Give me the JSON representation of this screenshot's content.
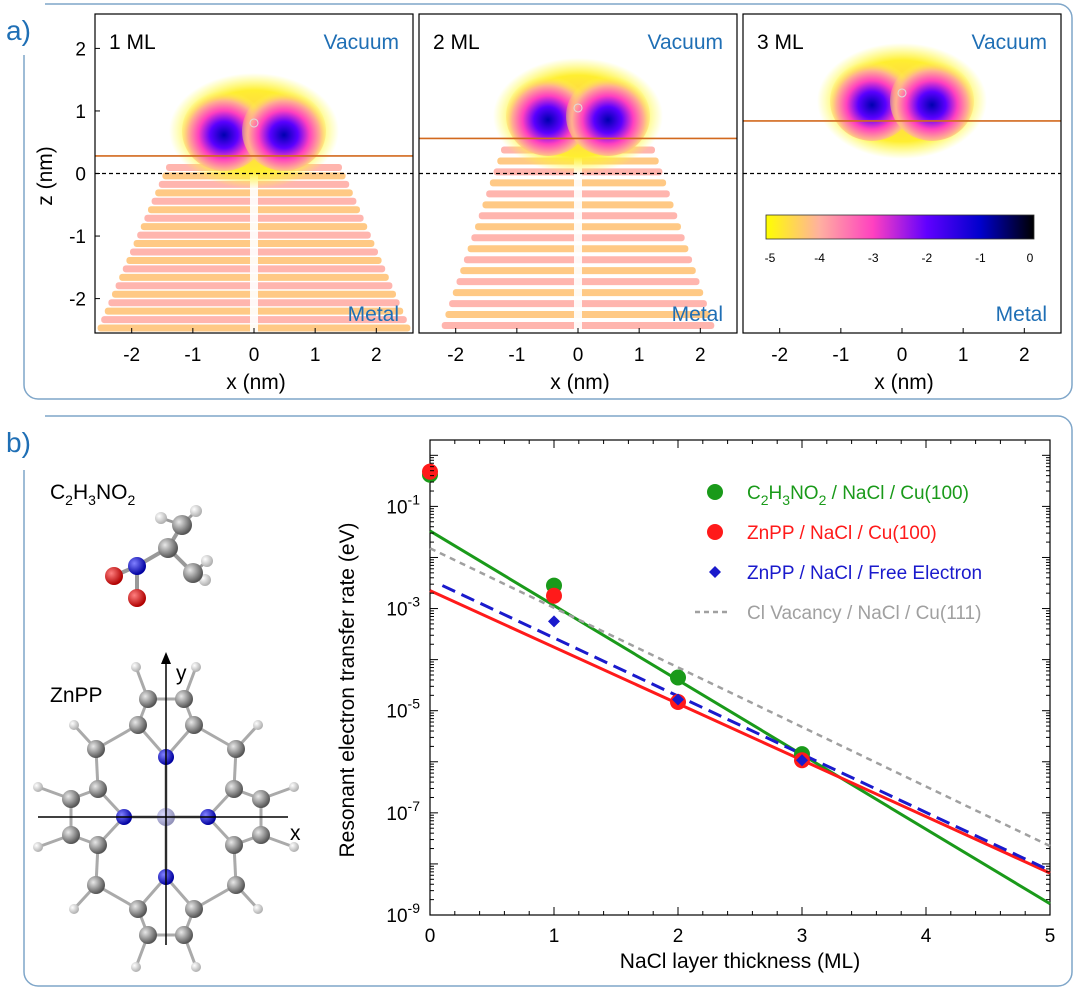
{
  "panel_a": {
    "letter": "a)",
    "panels": [
      {
        "label": "1 ML",
        "surface_z": 0.28,
        "blob_z": 0.68
      },
      {
        "label": "2 ML",
        "surface_z": 0.56,
        "blob_z": 0.92
      },
      {
        "label": "3 ML",
        "surface_z": 0.84,
        "blob_z": 1.16
      }
    ],
    "vacuum_label": "Vacuum",
    "metal_label": "Metal",
    "xlabel": "x (nm)",
    "ylabel": "z (nm)",
    "x_ticks": [
      "-2",
      "-1",
      "0",
      "1",
      "2"
    ],
    "y_ticks": [
      "2",
      "1",
      "0",
      "-1",
      "-2"
    ],
    "xlim": [
      -2.6,
      2.6
    ],
    "ylim": [
      -2.55,
      2.55
    ],
    "colorbar": {
      "ticks": [
        "-5",
        "-4",
        "-3",
        "-2",
        "-1",
        "0"
      ],
      "colors": [
        "#ffff00",
        "#ffb0a0",
        "#ff40c0",
        "#6000ff",
        "#0000cc",
        "#000000"
      ]
    }
  },
  "panel_b": {
    "letter": "b)",
    "molecule1": {
      "formula_main": "C",
      "sub1": "2",
      "h": "H",
      "sub2": "3",
      "rest": "NO",
      "sub3": "2"
    },
    "molecule2": {
      "name": "ZnPP"
    },
    "axis_x": "x",
    "axis_y": "y"
  },
  "chart_data": {
    "type": "scatter",
    "xlabel": "NaCl layer thickness (ML)",
    "ylabel": "Resonant electron transfer rate (eV)",
    "xlim": [
      0,
      5
    ],
    "ylim_log10": [
      -9,
      0.3
    ],
    "x_ticks": [
      "0",
      "1",
      "2",
      "3",
      "4",
      "5"
    ],
    "y_ticks": [
      {
        "base": "10",
        "exp": "-1",
        "value": -1
      },
      {
        "base": "10",
        "exp": "-3",
        "value": -3
      },
      {
        "base": "10",
        "exp": "-5",
        "value": -5
      },
      {
        "base": "10",
        "exp": "-7",
        "value": -7
      },
      {
        "base": "10",
        "exp": "-9",
        "value": -9
      }
    ],
    "series": [
      {
        "name": "C2H3NO2 / NaCl / Cu(100)",
        "legend_main": "C",
        "legend_parts": [
          "2",
          "H",
          "3",
          "NO",
          "2",
          " / NaCl / Cu(100)"
        ],
        "color": "#1a9a1a",
        "marker": "circle",
        "points": [
          {
            "x": 0,
            "log10y": -0.38
          },
          {
            "x": 1,
            "log10y": -2.55
          },
          {
            "x": 2,
            "log10y": -4.35
          },
          {
            "x": 3,
            "log10y": -5.85
          }
        ],
        "fit": [
          {
            "x": 0,
            "log10y": -1.48
          },
          {
            "x": 5,
            "log10y": -8.78
          }
        ]
      },
      {
        "name": "ZnPP / NaCl / Cu(100)",
        "legend_text": "ZnPP / NaCl / Cu(100)",
        "color": "#ff1a1a",
        "marker": "circle",
        "points": [
          {
            "x": 0,
            "log10y": -0.32
          },
          {
            "x": 1,
            "log10y": -2.75
          },
          {
            "x": 2,
            "log10y": -4.83
          },
          {
            "x": 3,
            "log10y": -5.97
          }
        ],
        "fit": [
          {
            "x": 0,
            "log10y": -2.65
          },
          {
            "x": 5,
            "log10y": -8.18
          }
        ]
      },
      {
        "name": "ZnPP / NaCl / Free Electron",
        "legend_text": "ZnPP / NaCl / Free Electron",
        "color": "#1a1acc",
        "marker": "diamond",
        "points": [
          {
            "x": 1,
            "log10y": -3.25
          },
          {
            "x": 2,
            "log10y": -4.78
          },
          {
            "x": 3,
            "log10y": -5.97
          }
        ],
        "fit": [
          {
            "x": 0.1,
            "log10y": -2.55
          },
          {
            "x": 5,
            "log10y": -8.13
          }
        ]
      },
      {
        "name": "Cl Vacancy / NaCl / Cu(111)",
        "legend_text": "Cl Vacancy / NaCl / Cu(111)",
        "color": "#a0a0a0",
        "marker": "none",
        "points": [],
        "fit": [
          {
            "x": 0,
            "log10y": -1.82
          },
          {
            "x": 5,
            "log10y": -7.65
          }
        ]
      }
    ]
  }
}
